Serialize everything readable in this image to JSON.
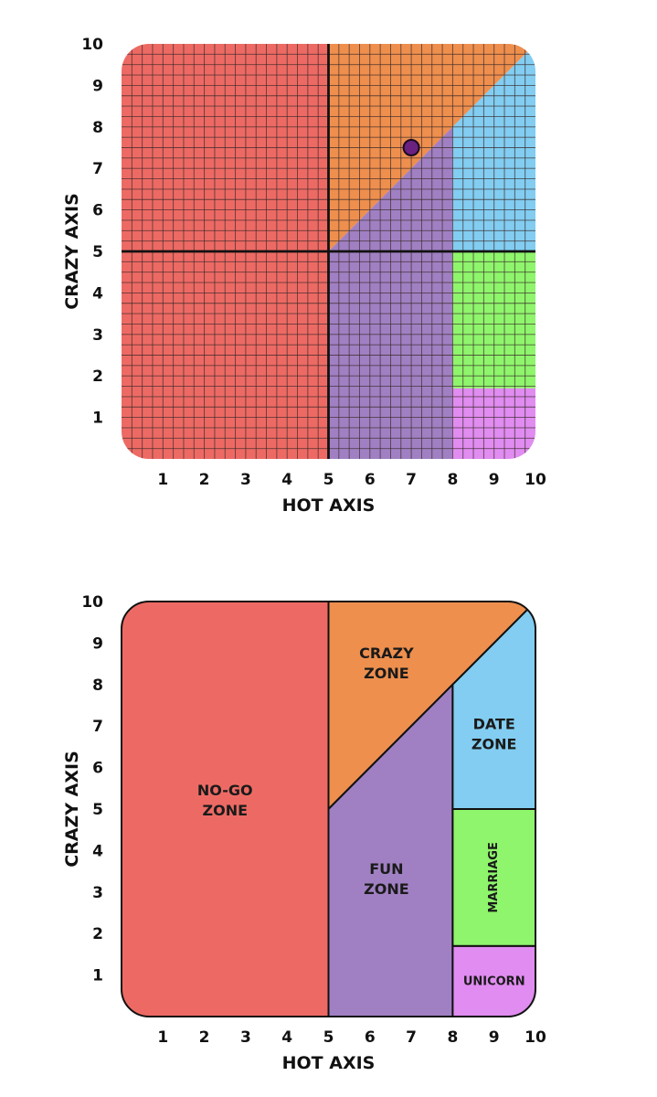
{
  "colors": {
    "nogo": "#ed6a64",
    "crazy": "#ee8f4e",
    "fun": "#a080c2",
    "date": "#82cdf1",
    "marriage": "#8ff56c",
    "unicorn": "#e08cf0",
    "point": "#6a2180"
  },
  "chart_data": [
    {
      "type": "scatter",
      "title": "",
      "xlabel": "HOT AXIS",
      "ylabel": "CRAZY AXIS",
      "xlim": [
        0,
        10
      ],
      "ylim": [
        0,
        10
      ],
      "grid": true,
      "x_ticks": [
        "1",
        "2",
        "3",
        "4",
        "5",
        "6",
        "7",
        "8",
        "9",
        "10"
      ],
      "y_ticks": [
        "1",
        "2",
        "3",
        "4",
        "5",
        "6",
        "7",
        "8",
        "9",
        "10"
      ],
      "points": [
        {
          "x": 7,
          "y": 7.5
        }
      ],
      "zones": [
        {
          "id": "nogo",
          "color_key": "nogo",
          "polygon": [
            [
              0,
              0
            ],
            [
              5,
              0
            ],
            [
              5,
              10
            ],
            [
              0,
              10
            ]
          ]
        },
        {
          "id": "crazy",
          "color_key": "crazy",
          "polygon": [
            [
              5,
              10
            ],
            [
              5,
              5
            ],
            [
              10,
              10
            ]
          ]
        },
        {
          "id": "fun",
          "color_key": "fun",
          "polygon": [
            [
              5,
              0
            ],
            [
              8,
              0
            ],
            [
              8,
              8
            ],
            [
              5,
              5
            ]
          ]
        },
        {
          "id": "date",
          "color_key": "date",
          "polygon": [
            [
              8,
              5
            ],
            [
              10,
              5
            ],
            [
              10,
              10
            ],
            [
              8,
              8
            ]
          ]
        },
        {
          "id": "marriage",
          "color_key": "marriage",
          "polygon": [
            [
              8,
              1.7
            ],
            [
              10,
              1.7
            ],
            [
              10,
              5
            ],
            [
              8,
              5
            ]
          ]
        },
        {
          "id": "unicorn",
          "color_key": "unicorn",
          "polygon": [
            [
              8,
              0
            ],
            [
              10,
              0
            ],
            [
              10,
              1.7
            ],
            [
              8,
              1.7
            ]
          ]
        }
      ]
    },
    {
      "type": "area",
      "title": "",
      "xlabel": "HOT AXIS",
      "ylabel": "CRAZY AXIS",
      "xlim": [
        0,
        10
      ],
      "ylim": [
        0,
        10
      ],
      "grid": false,
      "x_ticks": [
        "1",
        "2",
        "3",
        "4",
        "5",
        "6",
        "7",
        "8",
        "9",
        "10"
      ],
      "y_ticks": [
        "1",
        "2",
        "3",
        "4",
        "5",
        "6",
        "7",
        "8",
        "9",
        "10"
      ],
      "zones": [
        {
          "id": "nogo",
          "color_key": "nogo",
          "polygon": [
            [
              0,
              0
            ],
            [
              5,
              0
            ],
            [
              5,
              10
            ],
            [
              0,
              10
            ]
          ],
          "label": [
            "NO-GO",
            "ZONE"
          ],
          "label_at": [
            2.5,
            5.2
          ]
        },
        {
          "id": "crazy",
          "color_key": "crazy",
          "polygon": [
            [
              5,
              10
            ],
            [
              5,
              5
            ],
            [
              10,
              10
            ]
          ],
          "label": [
            "CRAZY",
            "ZONE"
          ],
          "label_at": [
            6.4,
            8.5
          ]
        },
        {
          "id": "fun",
          "color_key": "fun",
          "polygon": [
            [
              5,
              0
            ],
            [
              8,
              0
            ],
            [
              8,
              8
            ],
            [
              5,
              5
            ]
          ],
          "label": [
            "FUN",
            "ZONE"
          ],
          "label_at": [
            6.4,
            3.3
          ]
        },
        {
          "id": "date",
          "color_key": "date",
          "polygon": [
            [
              8,
              5
            ],
            [
              10,
              5
            ],
            [
              10,
              10
            ],
            [
              8,
              8
            ]
          ],
          "label": [
            "DATE",
            "ZONE"
          ],
          "label_at": [
            9.0,
            6.8
          ]
        },
        {
          "id": "marriage",
          "color_key": "marriage",
          "polygon": [
            [
              8,
              1.7
            ],
            [
              10,
              1.7
            ],
            [
              10,
              5
            ],
            [
              8,
              5
            ]
          ],
          "label": [
            "MARRIAGE"
          ],
          "label_at": [
            9.0,
            3.35
          ],
          "vertical": true
        },
        {
          "id": "unicorn",
          "color_key": "unicorn",
          "polygon": [
            [
              8,
              0
            ],
            [
              10,
              0
            ],
            [
              10,
              1.7
            ],
            [
              8,
              1.7
            ]
          ],
          "label": [
            "UNICORN"
          ],
          "label_at": [
            9.0,
            0.85
          ]
        }
      ]
    }
  ]
}
